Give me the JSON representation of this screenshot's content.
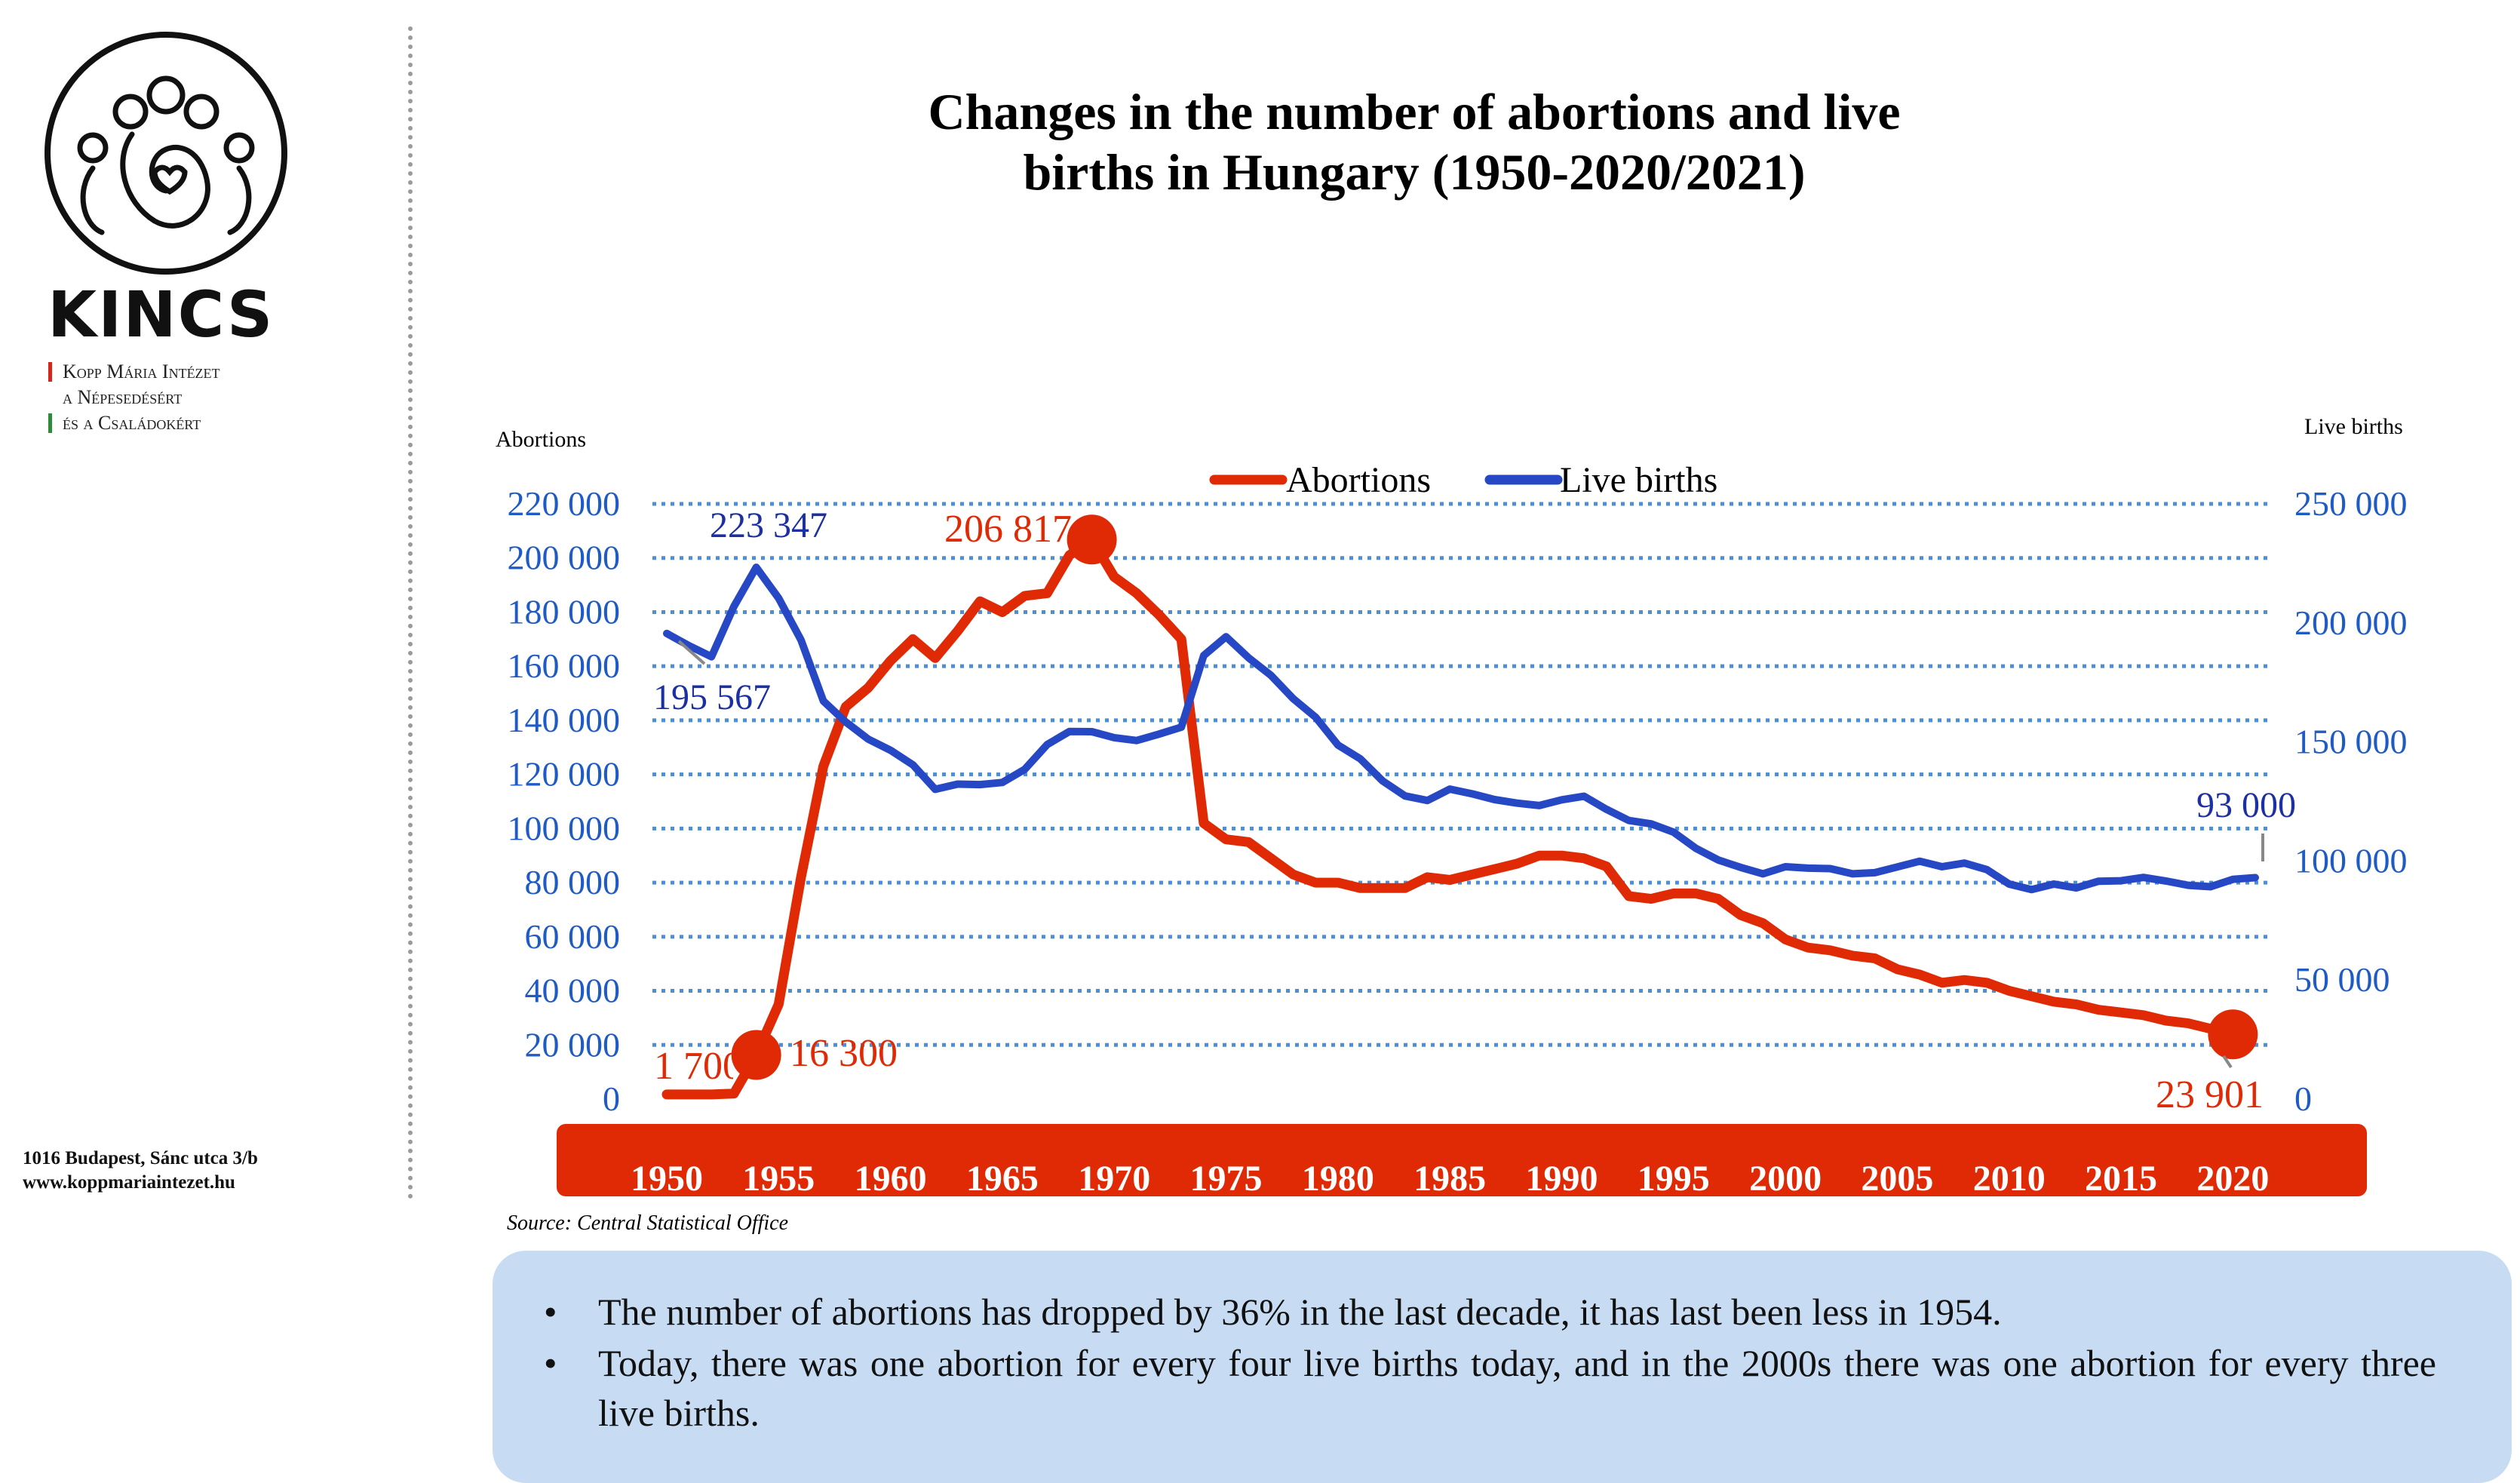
{
  "brand": {
    "name": "KINCS",
    "institute_lines": [
      "Kopp Mária Intézet",
      "a Népesedésért",
      "és a Családokért"
    ],
    "address_lines": [
      "1016 Budapest, Sánc utca 3/b",
      "www.koppmariaintezet.hu"
    ]
  },
  "title_lines": [
    "Changes in the number of abortions and live",
    "births in Hungary (1950-2020/2021)"
  ],
  "source": "Source: Central Statistical Office",
  "notes": [
    "The number of abortions has dropped by 36% in the last decade, it has last been less in 1954.",
    "Today, there was one abortion for every four live births today, and in the 2000s there was one abortion for every three live births."
  ],
  "colors": {
    "abortions": "#e02a05",
    "live_births": "#2748c4",
    "axis_tick_text": "#1f5bc4",
    "grid": "#4a8fd8",
    "x_band": "#e02a05",
    "notes_bg": "#c7dcf2"
  },
  "chart_data": {
    "type": "line",
    "left_axis_title": "Abortions",
    "right_axis_title": "Live births",
    "left_ylim": [
      0,
      220000
    ],
    "right_ylim": [
      0,
      250000
    ],
    "left_ticks": [
      "0",
      "20 000",
      "40 000",
      "60 000",
      "80 000",
      "100 000",
      "120 000",
      "140 000",
      "160 000",
      "180 000",
      "200 000",
      "220 000"
    ],
    "right_ticks": [
      "0",
      "50 000",
      "100 000",
      "150 000",
      "200 000",
      "250 000"
    ],
    "x_tick_labels": [
      "1950",
      "1955",
      "1960",
      "1965",
      "1970",
      "1975",
      "1980",
      "1985",
      "1990",
      "1995",
      "2000",
      "2005",
      "2010",
      "2015",
      "2020"
    ],
    "grid": true,
    "legend_position": "top-center",
    "series": [
      {
        "name": "Abortions",
        "axis": "left",
        "x": [
          1950,
          1951,
          1952,
          1953,
          1954,
          1955,
          1956,
          1957,
          1958,
          1959,
          1960,
          1961,
          1962,
          1963,
          1964,
          1965,
          1966,
          1967,
          1968,
          1969,
          1970,
          1971,
          1972,
          1973,
          1974,
          1975,
          1976,
          1977,
          1978,
          1979,
          1980,
          1981,
          1982,
          1983,
          1984,
          1985,
          1986,
          1987,
          1988,
          1989,
          1990,
          1991,
          1992,
          1993,
          1994,
          1995,
          1996,
          1997,
          1998,
          1999,
          2000,
          2001,
          2002,
          2003,
          2004,
          2005,
          2006,
          2007,
          2008,
          2009,
          2010,
          2011,
          2012,
          2013,
          2014,
          2015,
          2016,
          2017,
          2018,
          2019,
          2020
        ],
        "values": [
          1700,
          1700,
          1700,
          2000,
          16300,
          35000,
          82000,
          123000,
          145000,
          152000,
          162000,
          170000,
          163000,
          173000,
          184000,
          180000,
          186000,
          187000,
          201000,
          206817,
          193000,
          187000,
          179000,
          170000,
          102000,
          96000,
          95000,
          89000,
          83000,
          80000,
          80000,
          78000,
          78000,
          78000,
          82000,
          81000,
          83000,
          85000,
          87000,
          90000,
          90000,
          89000,
          86000,
          75000,
          74000,
          76000,
          76000,
          74000,
          68000,
          65000,
          59000,
          56000,
          55000,
          53000,
          52000,
          48000,
          46000,
          43000,
          44000,
          43000,
          40000,
          38000,
          36000,
          35000,
          33000,
          32000,
          31000,
          29000,
          28000,
          26000,
          23901
        ]
      },
      {
        "name": "Live births",
        "axis": "right",
        "x": [
          1950,
          1951,
          1952,
          1953,
          1954,
          1955,
          1956,
          1957,
          1958,
          1959,
          1960,
          1961,
          1962,
          1963,
          1964,
          1965,
          1966,
          1967,
          1968,
          1969,
          1970,
          1971,
          1972,
          1973,
          1974,
          1975,
          1976,
          1977,
          1978,
          1979,
          1980,
          1981,
          1982,
          1983,
          1984,
          1985,
          1986,
          1987,
          1988,
          1989,
          1990,
          1991,
          1992,
          1993,
          1994,
          1995,
          1996,
          1997,
          1998,
          1999,
          2000,
          2001,
          2002,
          2003,
          2004,
          2005,
          2006,
          2007,
          2008,
          2009,
          2010,
          2011,
          2012,
          2013,
          2014,
          2015,
          2016,
          2017,
          2018,
          2019,
          2020,
          2021
        ],
        "values": [
          195567,
          190400,
          185800,
          206900,
          223347,
          210400,
          192800,
          167200,
          158400,
          151200,
          146500,
          140400,
          130100,
          132300,
          132100,
          133000,
          138500,
          148900,
          154400,
          154300,
          151800,
          150600,
          153300,
          156200,
          186300,
          194200,
          185400,
          178000,
          168200,
          160400,
          148700,
          142900,
          133600,
          127300,
          125400,
          130200,
          128200,
          125800,
          124300,
          123300,
          125700,
          127200,
          121700,
          117000,
          115600,
          112100,
          105300,
          100400,
          97300,
          94600,
          97600,
          97000,
          96800,
          94600,
          95100,
          97500,
          99900,
          97600,
          99100,
          96400,
          90300,
          88000,
          90300,
          88700,
          91500,
          91700,
          93100,
          91600,
          89800,
          89200,
          92300,
          93000
        ]
      }
    ],
    "annotations": [
      {
        "text": "1 700",
        "series": "Abortions",
        "x": 1950,
        "value": 1700
      },
      {
        "text": "16 300",
        "series": "Abortions",
        "x": 1954,
        "value": 16300
      },
      {
        "text": "206 817",
        "series": "Abortions",
        "x": 1969,
        "value": 206817
      },
      {
        "text": "23 901",
        "series": "Abortions",
        "x": 2020,
        "value": 23901
      },
      {
        "text": "223 347",
        "series": "Live births",
        "x": 1954,
        "value": 223347
      },
      {
        "text": "195 567",
        "series": "Live births",
        "x": 1950,
        "value": 195567
      },
      {
        "text": "93 000",
        "series": "Live births",
        "x": 2021,
        "value": 93000
      }
    ]
  }
}
